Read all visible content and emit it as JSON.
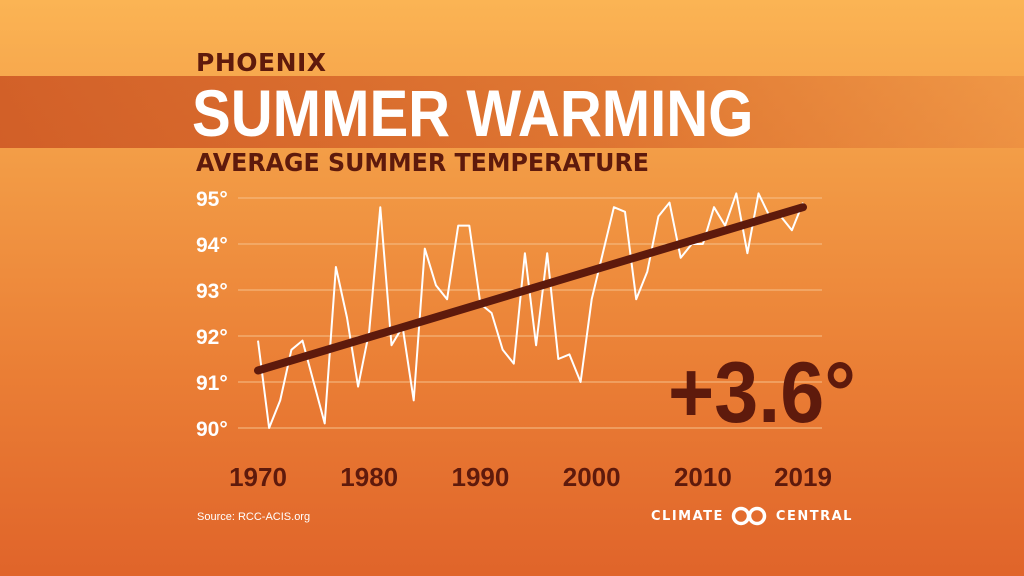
{
  "header": {
    "city": "PHOENIX",
    "title": "SUMMER WARMING",
    "subtitle": "AVERAGE SUMMER TEMPERATURE"
  },
  "change_label": "+3.6°",
  "source": "Source: RCC-ACIS.org",
  "logo": {
    "left": "CLIMATE",
    "right": "CENTRAL",
    "icon": "climate-central-rings-icon"
  },
  "colors": {
    "data_line": "#ffffff",
    "trend_line": "#5e1a0c",
    "text_dark": "#5e1a0c",
    "grid": "#f6c08a"
  },
  "chart_data": {
    "type": "line",
    "title": "AVERAGE SUMMER TEMPERATURE",
    "xlabel": "",
    "ylabel": "",
    "xlim": [
      1970,
      2019
    ],
    "ylim": [
      90,
      95
    ],
    "x_ticks": [
      1970,
      1980,
      1990,
      2000,
      2010,
      2019
    ],
    "y_ticks": [
      90,
      91,
      92,
      93,
      94,
      95
    ],
    "y_tick_labels": [
      "90°",
      "91°",
      "92°",
      "93°",
      "94°",
      "95°"
    ],
    "grid": true,
    "series": [
      {
        "x": [
          1970,
          1971,
          1972,
          1973,
          1974,
          1975,
          1976,
          1977,
          1978,
          1979,
          1980,
          1981,
          1982,
          1983,
          1984,
          1985,
          1986,
          1987,
          1988,
          1989,
          1990,
          1991,
          1992,
          1993,
          1994,
          1995,
          1996,
          1997,
          1998,
          1999,
          2000,
          2001,
          2002,
          2003,
          2004,
          2005,
          2006,
          2007,
          2008,
          2009,
          2010,
          2011,
          2012,
          2013,
          2014,
          2015,
          2016,
          2017,
          2018,
          2019
        ],
        "values": [
          91.9,
          90.0,
          90.6,
          91.7,
          91.9,
          91.0,
          90.1,
          93.5,
          92.4,
          90.9,
          92.1,
          94.8,
          91.8,
          92.2,
          90.6,
          93.9,
          93.1,
          92.8,
          94.4,
          94.4,
          92.7,
          92.5,
          91.7,
          91.4,
          93.8,
          91.8,
          93.8,
          91.5,
          91.6,
          91.0,
          92.8,
          93.8,
          94.8,
          94.7,
          92.8,
          93.4,
          94.6,
          94.9,
          93.7,
          94.0,
          94.0,
          94.8,
          94.4,
          95.1,
          93.8,
          95.1,
          94.6,
          94.6,
          94.3,
          94.9
        ]
      },
      {
        "name": "trend",
        "x": [
          1970,
          2019
        ],
        "values": [
          91.25,
          94.8
        ]
      }
    ]
  }
}
